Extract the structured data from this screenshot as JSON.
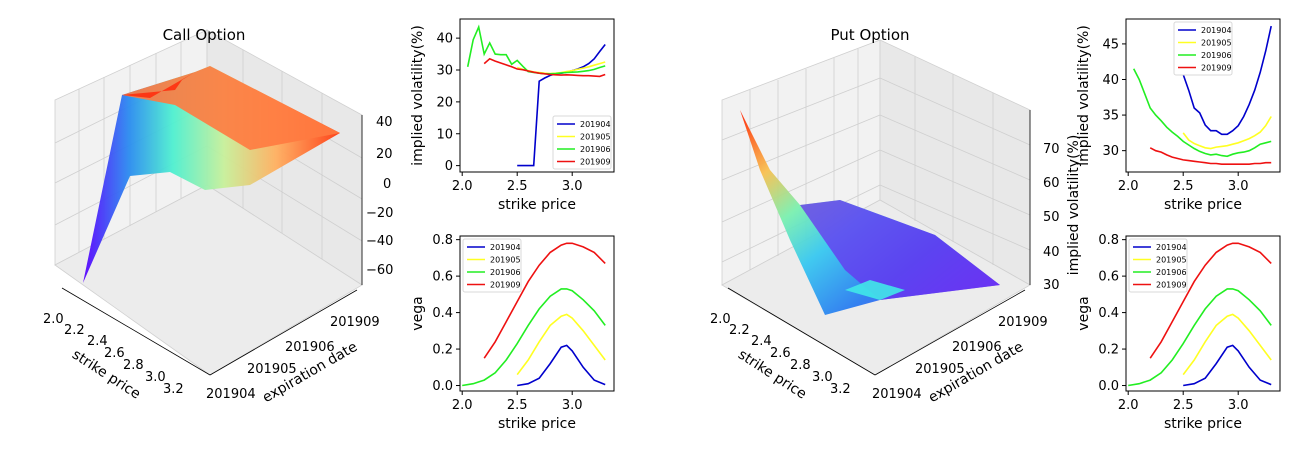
{
  "figure": {
    "call_panel": {
      "title": "Call Option",
      "xlabel": "strike price",
      "ylabel": "expiration date",
      "xticks": [
        "2.0",
        "2.2",
        "2.4",
        "2.6",
        "2.8",
        "3.0",
        "3.2"
      ],
      "yticks": [
        "201904",
        "201905",
        "201906",
        "201909"
      ],
      "zticks": [
        "40",
        "20",
        "0",
        "−20",
        "−40",
        "−60"
      ],
      "colormap": "rainbow"
    },
    "put_panel": {
      "title": "Put Option",
      "xlabel": "strike price",
      "ylabel": "expiration date",
      "zlabel": "implied volatility(%)",
      "xticks": [
        "2.0",
        "2.2",
        "2.4",
        "2.6",
        "2.8",
        "3.0",
        "3.2"
      ],
      "yticks": [
        "201904",
        "201905",
        "201906",
        "201909"
      ],
      "zticks": [
        "70",
        "60",
        "50",
        "40",
        "30"
      ],
      "colormap": "rainbow"
    }
  },
  "chart_data": [
    {
      "type": "line",
      "panel": "call-implied-volatility",
      "xlabel": "strike price",
      "ylabel": "implied volatility(%)",
      "xlim": [
        1.98,
        3.38
      ],
      "ylim": [
        -2,
        46
      ],
      "xticks": [
        2.0,
        2.5,
        3.0
      ],
      "yticks": [
        0,
        10,
        20,
        30,
        40
      ],
      "legend": "bottom-right",
      "series": [
        {
          "name": "201904",
          "color": "#0000cc",
          "x": [
            2.5,
            2.55,
            2.6,
            2.65,
            2.7,
            2.75,
            2.8,
            2.85,
            2.9,
            2.95,
            3.0,
            3.05,
            3.1,
            3.15,
            3.2,
            3.25,
            3.3
          ],
          "y": [
            0,
            0,
            0,
            0,
            26.5,
            27.5,
            28.3,
            28.8,
            29,
            29.3,
            29.8,
            30.3,
            31,
            32,
            33.5,
            35.8,
            38
          ]
        },
        {
          "name": "201905",
          "color": "#ffff22",
          "x": [
            2.5,
            2.55,
            2.6,
            2.65,
            2.7,
            2.75,
            2.8,
            2.85,
            2.9,
            2.95,
            3.0,
            3.05,
            3.1,
            3.15,
            3.2,
            3.25,
            3.3
          ],
          "y": [
            30.8,
            30.2,
            29.8,
            29.4,
            29.2,
            29.0,
            28.9,
            29.0,
            29.2,
            29.5,
            29.8,
            30.2,
            30.6,
            31.0,
            31.5,
            32.0,
            32.5
          ]
        },
        {
          "name": "201906",
          "color": "#22ee22",
          "x": [
            2.05,
            2.1,
            2.15,
            2.2,
            2.25,
            2.3,
            2.35,
            2.4,
            2.45,
            2.5,
            2.55,
            2.6,
            2.65,
            2.7,
            2.75,
            2.8,
            2.85,
            2.9,
            2.95,
            3.0,
            3.05,
            3.1,
            3.15,
            3.2,
            3.25,
            3.3
          ],
          "y": [
            31,
            39.5,
            43.5,
            35,
            38.5,
            35,
            34.8,
            34.8,
            31.8,
            33,
            31.2,
            29.5,
            29.2,
            29,
            28.8,
            28.8,
            28.9,
            29.1,
            29.2,
            29.3,
            29.4,
            29.6,
            29.8,
            30.2,
            30.8,
            31.3
          ]
        },
        {
          "name": "201909",
          "color": "#ee1111",
          "x": [
            2.2,
            2.25,
            2.3,
            2.35,
            2.4,
            2.45,
            2.5,
            2.55,
            2.6,
            2.65,
            2.7,
            2.75,
            2.8,
            2.85,
            2.9,
            2.95,
            3.0,
            3.05,
            3.1,
            3.15,
            3.2,
            3.25,
            3.3
          ],
          "y": [
            32,
            33.5,
            32.8,
            32.2,
            31.6,
            31,
            30.3,
            30.1,
            29.7,
            29.3,
            29,
            28.8,
            28.6,
            28.5,
            28.4,
            28.5,
            28.4,
            28.3,
            28.2,
            28.2,
            28.1,
            28.0,
            28.6
          ]
        }
      ]
    },
    {
      "type": "line",
      "panel": "call-vega",
      "xlabel": "strike price",
      "ylabel": "vega",
      "xlim": [
        1.98,
        3.38
      ],
      "ylim": [
        -0.03,
        0.82
      ],
      "xticks": [
        2.0,
        2.5,
        3.0
      ],
      "yticks": [
        0.0,
        0.2,
        0.4,
        0.6,
        0.8
      ],
      "legend": "top-left",
      "series": [
        {
          "name": "201904",
          "color": "#0000cc",
          "x": [
            2.5,
            2.6,
            2.7,
            2.8,
            2.9,
            2.95,
            3.0,
            3.1,
            3.2,
            3.3
          ],
          "y": [
            0.0,
            0.01,
            0.04,
            0.12,
            0.21,
            0.22,
            0.19,
            0.1,
            0.03,
            0.005
          ]
        },
        {
          "name": "201905",
          "color": "#ffff22",
          "x": [
            2.5,
            2.6,
            2.7,
            2.8,
            2.9,
            2.95,
            3.0,
            3.1,
            3.2,
            3.3
          ],
          "y": [
            0.06,
            0.14,
            0.24,
            0.33,
            0.38,
            0.39,
            0.37,
            0.3,
            0.22,
            0.14
          ]
        },
        {
          "name": "201906",
          "color": "#22ee22",
          "x": [
            2.0,
            2.1,
            2.2,
            2.3,
            2.4,
            2.5,
            2.6,
            2.7,
            2.8,
            2.9,
            2.95,
            3.0,
            3.1,
            3.2,
            3.3
          ],
          "y": [
            0.0,
            0.01,
            0.03,
            0.07,
            0.14,
            0.23,
            0.33,
            0.42,
            0.49,
            0.53,
            0.53,
            0.52,
            0.47,
            0.41,
            0.33
          ]
        },
        {
          "name": "201909",
          "color": "#ee1111",
          "x": [
            2.2,
            2.3,
            2.4,
            2.5,
            2.6,
            2.7,
            2.8,
            2.9,
            2.95,
            3.0,
            3.1,
            3.2,
            3.3
          ],
          "y": [
            0.15,
            0.24,
            0.35,
            0.46,
            0.57,
            0.66,
            0.73,
            0.77,
            0.78,
            0.78,
            0.76,
            0.73,
            0.67
          ]
        }
      ]
    },
    {
      "type": "line",
      "panel": "put-implied-volatility",
      "xlabel": "strike price",
      "ylabel": "implied volatility(%)",
      "xlim": [
        1.98,
        3.38
      ],
      "ylim": [
        27,
        48.5
      ],
      "xticks": [
        2.0,
        2.5,
        3.0
      ],
      "yticks": [
        30,
        35,
        40,
        45
      ],
      "legend": "top-center",
      "series": [
        {
          "name": "201904",
          "color": "#0000cc",
          "x": [
            2.5,
            2.55,
            2.6,
            2.65,
            2.7,
            2.75,
            2.8,
            2.85,
            2.9,
            2.95,
            3.0,
            3.05,
            3.1,
            3.15,
            3.2,
            3.25,
            3.3
          ],
          "y": [
            40.7,
            38.5,
            36,
            35.3,
            33.6,
            32.8,
            32.8,
            32.3,
            32.3,
            32.8,
            33.5,
            34.8,
            36.5,
            38.5,
            41,
            44,
            47.5
          ]
        },
        {
          "name": "201905",
          "color": "#ffff22",
          "x": [
            2.5,
            2.55,
            2.6,
            2.65,
            2.7,
            2.75,
            2.8,
            2.85,
            2.9,
            2.95,
            3.0,
            3.05,
            3.1,
            3.15,
            3.2,
            3.25,
            3.3
          ],
          "y": [
            32.5,
            31.5,
            31,
            30.7,
            30.4,
            30.3,
            30.5,
            30.6,
            30.7,
            30.9,
            31.1,
            31.4,
            31.7,
            32.1,
            32.6,
            33.5,
            34.8
          ]
        },
        {
          "name": "201906",
          "color": "#22ee22",
          "x": [
            2.05,
            2.1,
            2.15,
            2.2,
            2.25,
            2.3,
            2.35,
            2.4,
            2.45,
            2.5,
            2.55,
            2.6,
            2.65,
            2.7,
            2.75,
            2.8,
            2.85,
            2.9,
            2.95,
            3.0,
            3.05,
            3.1,
            3.15,
            3.2,
            3.25,
            3.3
          ],
          "y": [
            41.5,
            40,
            38,
            36,
            35,
            34.2,
            33.3,
            32.6,
            32,
            31.3,
            30.8,
            30.3,
            29.9,
            29.6,
            29.4,
            29.5,
            29.3,
            29.2,
            29.5,
            29.7,
            29.8,
            30.0,
            30.4,
            30.9,
            31.1,
            31.3
          ]
        },
        {
          "name": "201909",
          "color": "#ee1111",
          "x": [
            2.2,
            2.25,
            2.3,
            2.35,
            2.4,
            2.45,
            2.5,
            2.55,
            2.6,
            2.65,
            2.7,
            2.75,
            2.8,
            2.85,
            2.9,
            2.95,
            3.0,
            3.05,
            3.1,
            3.15,
            3.2,
            3.25,
            3.3
          ],
          "y": [
            30.4,
            30,
            29.8,
            29.4,
            29.1,
            28.9,
            28.7,
            28.6,
            28.5,
            28.4,
            28.3,
            28.2,
            28.2,
            28.1,
            28.1,
            28.1,
            28.1,
            28.1,
            28.1,
            28.2,
            28.2,
            28.3,
            28.3
          ]
        }
      ]
    },
    {
      "type": "line",
      "panel": "put-vega",
      "xlabel": "strike price",
      "ylabel": "vega",
      "xlim": [
        1.98,
        3.38
      ],
      "ylim": [
        -0.03,
        0.82
      ],
      "xticks": [
        2.0,
        2.5,
        3.0
      ],
      "yticks": [
        0.0,
        0.2,
        0.4,
        0.6,
        0.8
      ],
      "legend": "top-left",
      "series": [
        {
          "name": "201904",
          "color": "#0000cc",
          "x": [
            2.5,
            2.6,
            2.7,
            2.8,
            2.9,
            2.95,
            3.0,
            3.1,
            3.2,
            3.3
          ],
          "y": [
            0.0,
            0.01,
            0.04,
            0.12,
            0.21,
            0.22,
            0.19,
            0.1,
            0.03,
            0.005
          ]
        },
        {
          "name": "201905",
          "color": "#ffff22",
          "x": [
            2.5,
            2.6,
            2.7,
            2.8,
            2.9,
            2.95,
            3.0,
            3.1,
            3.2,
            3.3
          ],
          "y": [
            0.06,
            0.14,
            0.24,
            0.33,
            0.38,
            0.39,
            0.37,
            0.3,
            0.22,
            0.14
          ]
        },
        {
          "name": "201906",
          "color": "#22ee22",
          "x": [
            2.0,
            2.1,
            2.2,
            2.3,
            2.4,
            2.5,
            2.6,
            2.7,
            2.8,
            2.9,
            2.95,
            3.0,
            3.1,
            3.2,
            3.3
          ],
          "y": [
            0.0,
            0.01,
            0.03,
            0.07,
            0.14,
            0.23,
            0.33,
            0.42,
            0.49,
            0.53,
            0.53,
            0.52,
            0.47,
            0.41,
            0.33
          ]
        },
        {
          "name": "201909",
          "color": "#ee1111",
          "x": [
            2.2,
            2.3,
            2.4,
            2.5,
            2.6,
            2.7,
            2.8,
            2.9,
            2.95,
            3.0,
            3.1,
            3.2,
            3.3
          ],
          "y": [
            0.15,
            0.24,
            0.35,
            0.46,
            0.57,
            0.66,
            0.73,
            0.77,
            0.78,
            0.78,
            0.76,
            0.73,
            0.67
          ]
        }
      ]
    }
  ]
}
